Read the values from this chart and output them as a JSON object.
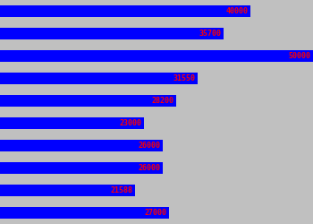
{
  "values": [
    40000,
    35700,
    50000,
    31550,
    28200,
    23000,
    26000,
    26000,
    21588,
    27000
  ],
  "bar_color": "#0000ff",
  "label_color": "#ff0000",
  "background_color": "#c0c0c0",
  "max_value": 50000,
  "bar_height": 0.55,
  "label_fontsize": 6,
  "label_fontfamily": "monospace",
  "figsize": [
    3.5,
    2.5
  ],
  "dpi": 100
}
